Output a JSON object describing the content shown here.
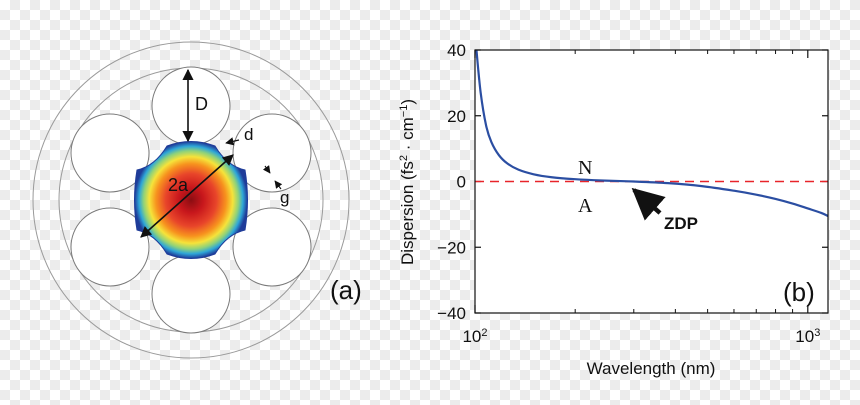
{
  "figure": {
    "panel_a": {
      "label": "(a)",
      "dim_D": "D",
      "dim_d": "d",
      "dim_2a": "2a",
      "dim_g": "g"
    },
    "panel_b": {
      "label": "(b)",
      "annot_N": "N",
      "annot_A": "A",
      "annot_ZDP": "ZDP"
    }
  },
  "chart_data": {
    "type": "line",
    "title": "",
    "xlabel": "Wavelength (nm)",
    "ylabel_main": "Dispersion (fs",
    "ylabel_sup1": "2",
    "ylabel_mid": " · cm",
    "ylabel_sup2": "−1",
    "ylabel_end": ")",
    "xscale": "log",
    "xlim": [
      100,
      1150
    ],
    "ylim": [
      -40,
      40
    ],
    "x_ticks": [
      {
        "value": 100,
        "base": "10",
        "exp": "2"
      },
      {
        "value": 1000,
        "base": "10",
        "exp": "3"
      }
    ],
    "y_ticks": [
      {
        "value": 40,
        "label": "40"
      },
      {
        "value": 20,
        "label": "20"
      },
      {
        "value": 0,
        "label": "0"
      },
      {
        "value": -20,
        "label": "−20"
      },
      {
        "value": -40,
        "label": "−40"
      }
    ],
    "zero_line": {
      "y": 0,
      "color": "#e8242a",
      "style": "dashed"
    },
    "series": [
      {
        "name": "Dispersion",
        "color": "#2b4ea2",
        "x": [
          101,
          104,
          108,
          112,
          118,
          125,
          135,
          150,
          170,
          200,
          240,
          300,
          380,
          480,
          600,
          700,
          800,
          900,
          1000,
          1100,
          1150
        ],
        "y": [
          40,
          27,
          17,
          12,
          8,
          5.5,
          3.6,
          2.2,
          1.3,
          0.7,
          0.3,
          0.0,
          -0.5,
          -1.4,
          -2.8,
          -4.0,
          -5.3,
          -6.7,
          -8.2,
          -9.6,
          -10.5
        ]
      }
    ],
    "zdp_wavelength": 300
  }
}
